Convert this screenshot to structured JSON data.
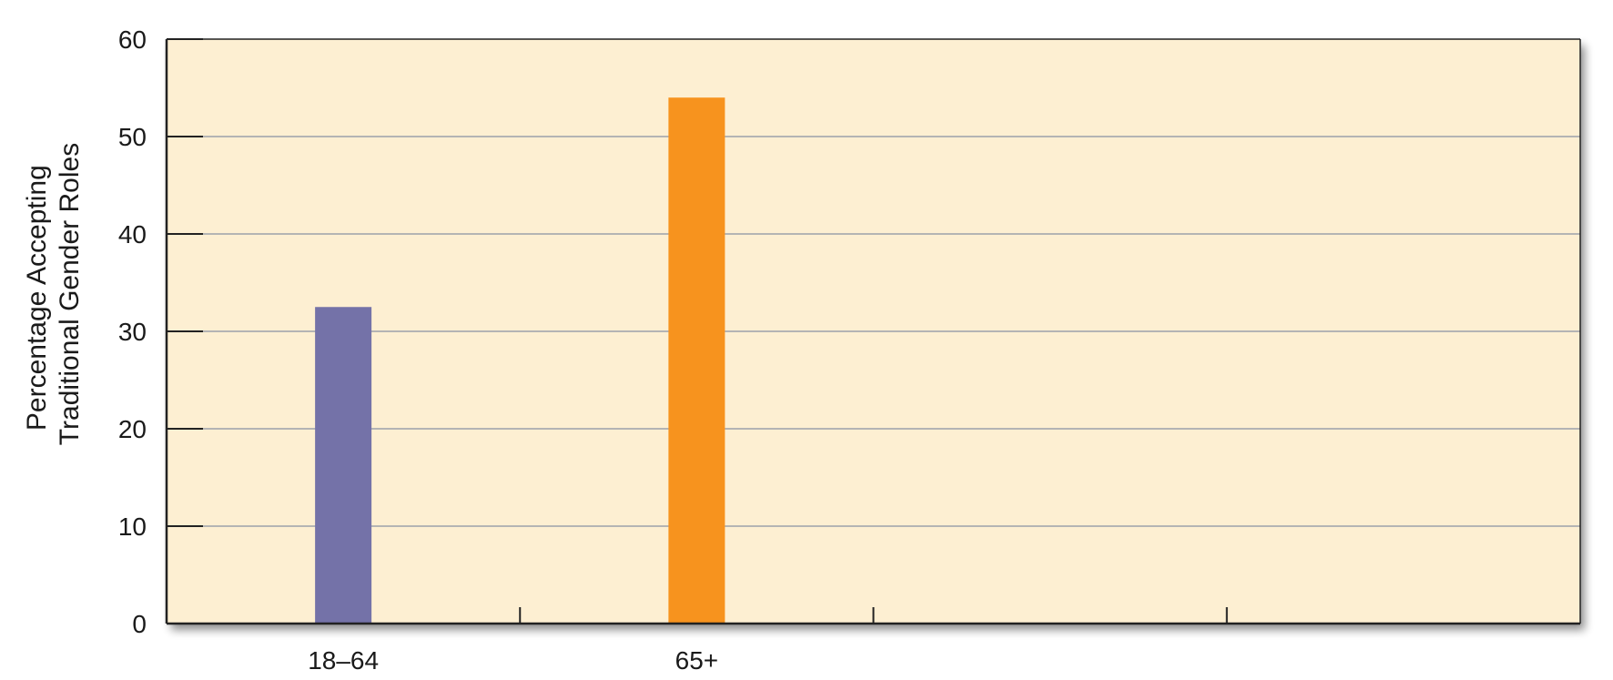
{
  "chart_data": {
    "type": "bar",
    "title": "",
    "xlabel": "",
    "ylabel_lines": [
      "Percentage Accepting",
      "Traditional Gender Roles"
    ],
    "categories": [
      "18–64",
      "65+"
    ],
    "values": [
      32.5,
      54
    ],
    "ylim": [
      0,
      60
    ],
    "yticks": [
      0,
      10,
      20,
      30,
      40,
      50,
      60
    ],
    "grid": true,
    "legend": "none",
    "colors": {
      "bars": [
        "#7472a8",
        "#f7931e"
      ],
      "plot_background": "#fdefd2",
      "gridline": "#b4b4b4",
      "axis": "#222222",
      "shadow": "#9a9a9a"
    }
  }
}
